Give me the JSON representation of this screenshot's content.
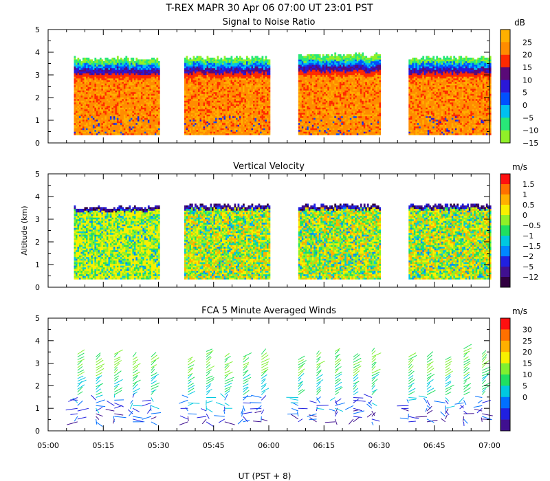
{
  "title": "T-REX  MAPR 30 Apr 06  07:00 UT  23:01  PST",
  "chart_data": [
    {
      "type": "heatmap",
      "title": "Signal to Noise Ratio",
      "units": "dB",
      "ylabel": "",
      "ylim": [
        0,
        5
      ],
      "yticks": [
        "0",
        "1",
        "2",
        "3",
        "4",
        "5"
      ],
      "colorbar_labels": [
        "25",
        "20",
        "15",
        "10",
        "5",
        "0",
        "−5",
        "−10",
        "−15"
      ],
      "colors": [
        "#ffb000",
        "#ff8c00",
        "#ff2a00",
        "#5a0a78",
        "#2a18d8",
        "#0050ff",
        "#00c0f0",
        "#28e878",
        "#90f028"
      ],
      "data_gaps": "gaps near 05:32-05:37, 06:01-06:07, 06:31-06:37",
      "blocks": [
        {
          "start": "05:07",
          "end": "05:30",
          "bottom_km": 0.35,
          "top_km": 3.8
        },
        {
          "start": "05:37",
          "end": "06:00",
          "bottom_km": 0.35,
          "top_km": 3.85
        },
        {
          "start": "06:08",
          "end": "06:30",
          "bottom_km": 0.35,
          "top_km": 3.95
        },
        {
          "start": "06:38",
          "end": "07:00",
          "bottom_km": 0.35,
          "top_km": 3.85
        }
      ]
    },
    {
      "type": "heatmap",
      "title": "Vertical Velocity",
      "units": "m/s",
      "ylabel": "Altitude (km)",
      "ylim": [
        0,
        5
      ],
      "yticks": [
        "0",
        "1",
        "2",
        "3",
        "4",
        "5"
      ],
      "colorbar_labels": [
        "1.5",
        "1",
        "0.5",
        "0",
        "−0.5",
        "−1",
        "−1.5",
        "−2",
        "−5",
        "−12"
      ],
      "colors": [
        "#ff1010",
        "#ff7000",
        "#ffb000",
        "#f8f000",
        "#90f028",
        "#20e060",
        "#00c8e0",
        "#0088ff",
        "#2020e0",
        "#401090",
        "#300040"
      ],
      "blocks": [
        {
          "start": "05:07",
          "end": "05:30",
          "bottom_km": 0.35,
          "top_km": 3.6
        },
        {
          "start": "05:37",
          "end": "06:00",
          "bottom_km": 0.35,
          "top_km": 3.7
        },
        {
          "start": "06:08",
          "end": "06:30",
          "bottom_km": 0.35,
          "top_km": 3.7
        },
        {
          "start": "06:38",
          "end": "07:00",
          "bottom_km": 0.35,
          "top_km": 3.7
        }
      ]
    },
    {
      "type": "scatter",
      "title": "FCA 5 Minute Averaged Winds",
      "units": "m/s",
      "ylabel": "",
      "ylim": [
        0,
        5
      ],
      "yticks": [
        "0",
        "1",
        "2",
        "3",
        "4",
        "5"
      ],
      "colorbar_labels": [
        "30",
        "25",
        "20",
        "15",
        "10",
        "5",
        "0"
      ],
      "colors": [
        "#ff1010",
        "#ff7000",
        "#ffb000",
        "#f8f000",
        "#80f030",
        "#20e060",
        "#00c8e0",
        "#0070ff",
        "#2020e0",
        "#401090"
      ],
      "profile_times": [
        "05:08",
        "05:13",
        "05:18",
        "05:23",
        "05:28",
        "05:38",
        "05:43",
        "05:48",
        "05:53",
        "05:58",
        "06:08",
        "06:13",
        "06:18",
        "06:23",
        "06:28",
        "06:38",
        "06:43",
        "06:48",
        "06:53",
        "06:58"
      ],
      "profile_top_km": [
        3.5,
        3.3,
        3.5,
        3.4,
        3.4,
        3.2,
        3.6,
        3.4,
        3.3,
        3.5,
        3.2,
        3.5,
        3.6,
        3.4,
        3.6,
        3.4,
        3.4,
        3.2,
        3.7,
        3.5
      ]
    }
  ],
  "x_axis": {
    "label": "UT  (PST + 8)",
    "range": [
      "05:00",
      "07:00"
    ],
    "ticks": [
      "05:00",
      "05:15",
      "05:30",
      "05:45",
      "06:00",
      "06:15",
      "06:30",
      "06:45",
      "07:00"
    ]
  }
}
